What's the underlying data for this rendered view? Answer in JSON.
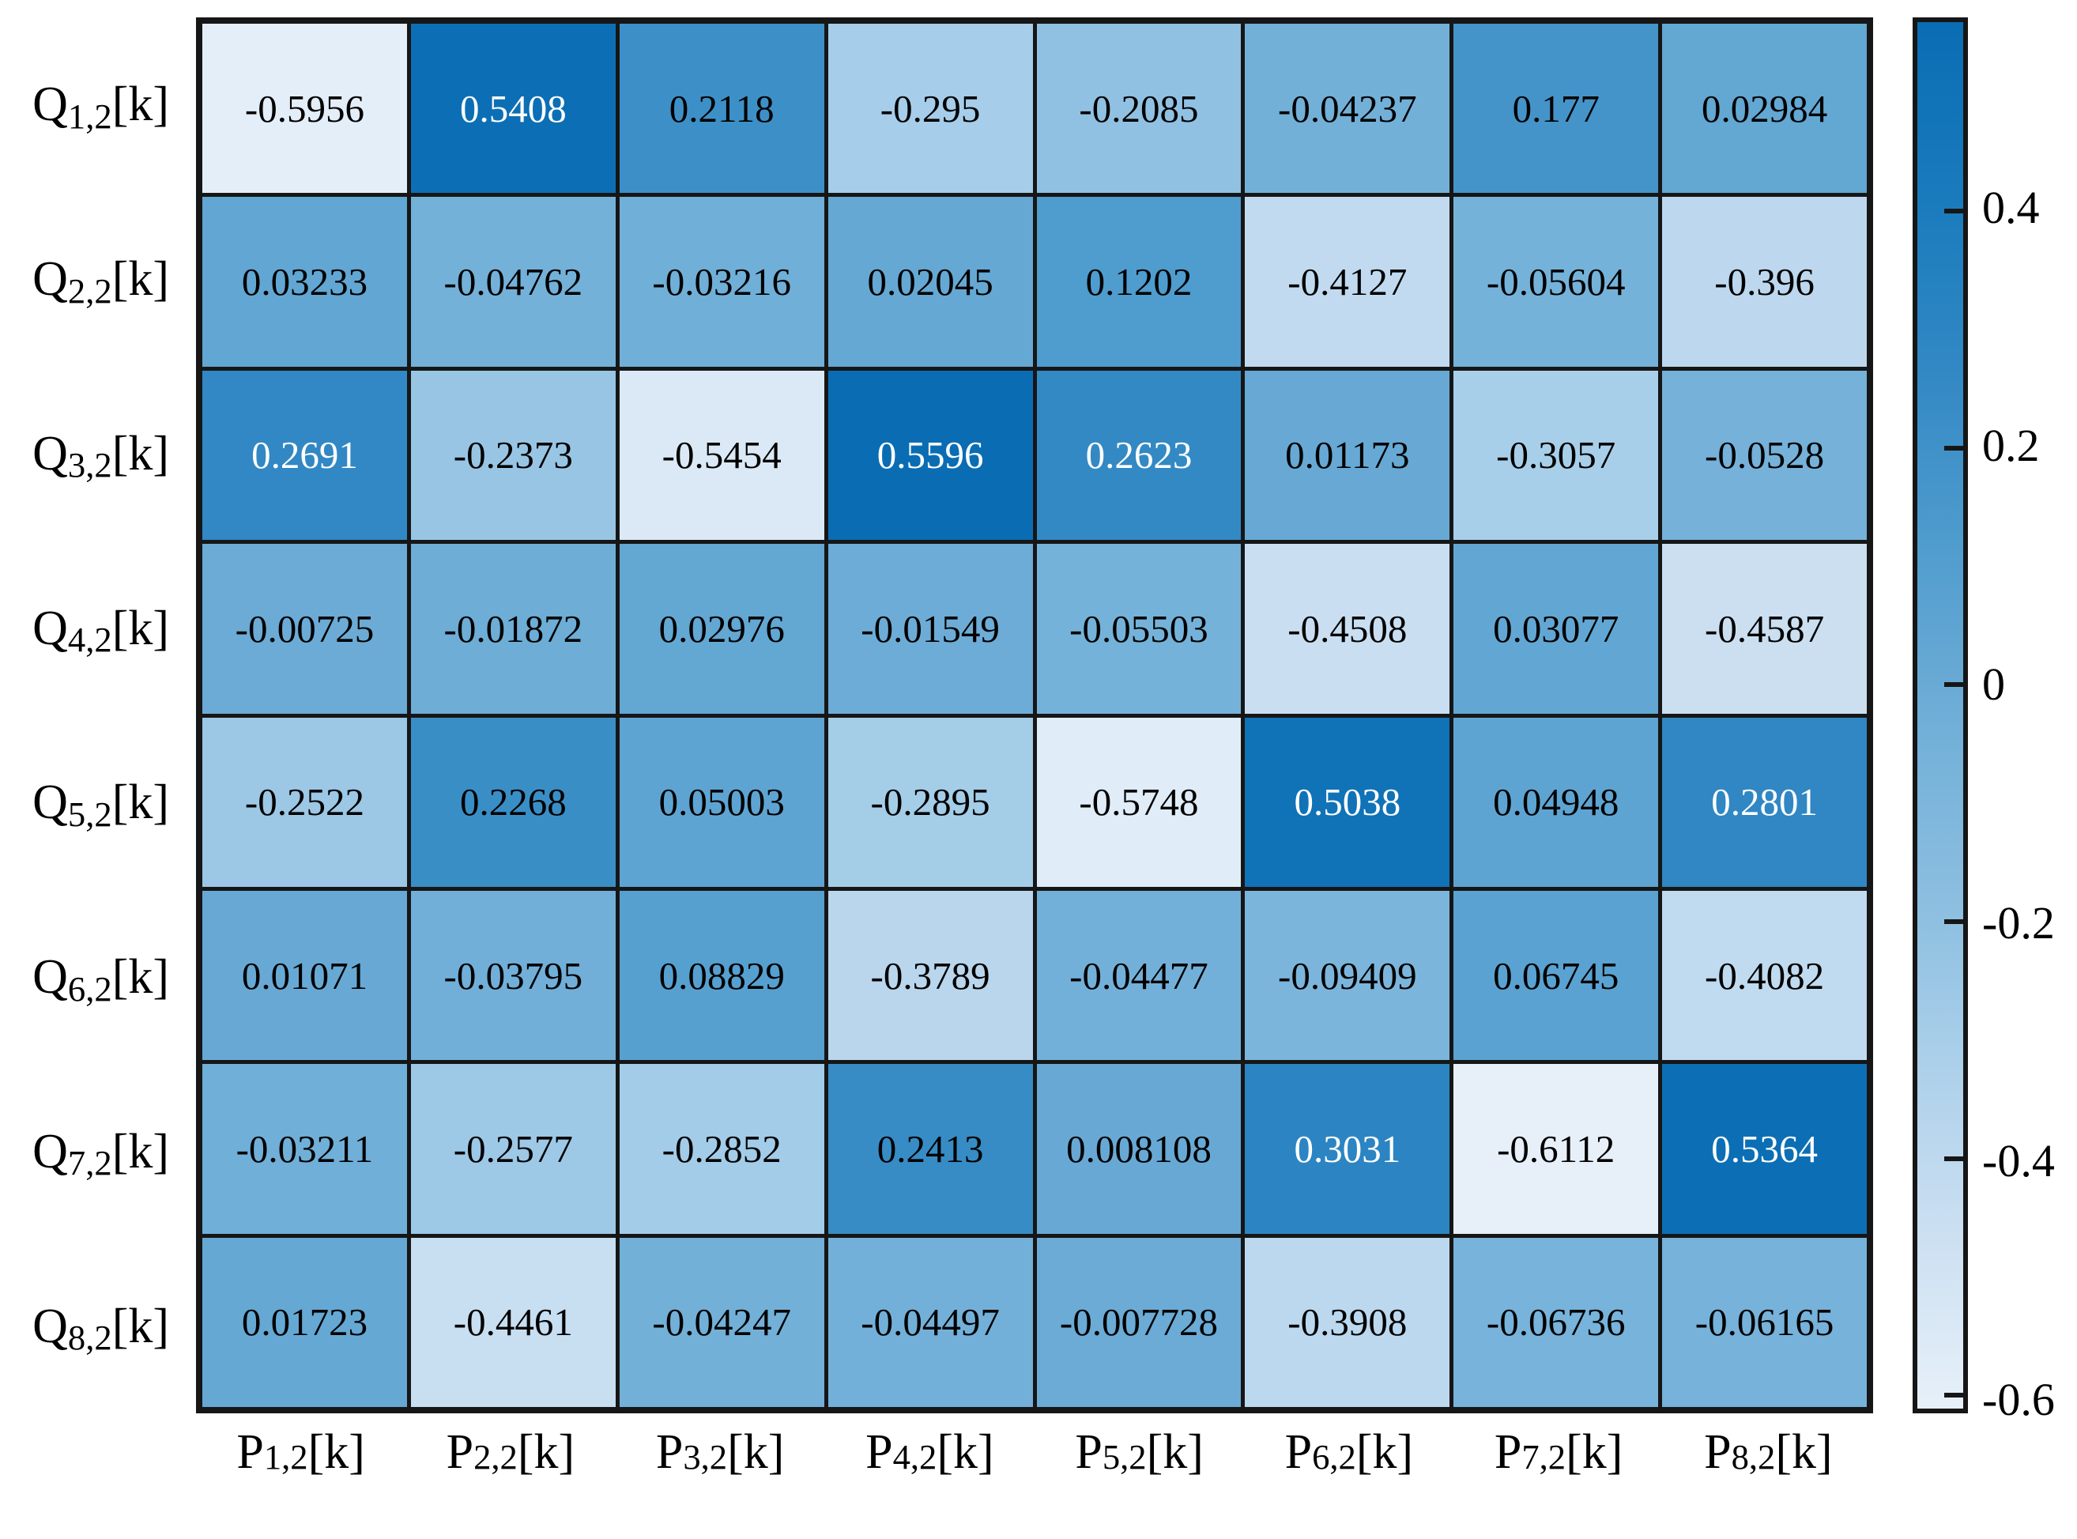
{
  "figure": {
    "background": "#ffffff",
    "grid_line_color": "#161616"
  },
  "chart_data": {
    "type": "heatmap",
    "title": "",
    "xlabel": "",
    "ylabel": "",
    "row_labels": [
      {
        "base": "Q",
        "sub": "1,2",
        "suffix": "[k]"
      },
      {
        "base": "Q",
        "sub": "2,2",
        "suffix": "[k]"
      },
      {
        "base": "Q",
        "sub": "3,2",
        "suffix": "[k]"
      },
      {
        "base": "Q",
        "sub": "4,2",
        "suffix": "[k]"
      },
      {
        "base": "Q",
        "sub": "5,2",
        "suffix": "[k]"
      },
      {
        "base": "Q",
        "sub": "6,2",
        "suffix": "[k]"
      },
      {
        "base": "Q",
        "sub": "7,2",
        "suffix": "[k]"
      },
      {
        "base": "Q",
        "sub": "8,2",
        "suffix": "[k]"
      }
    ],
    "col_labels": [
      {
        "base": "P",
        "sub": "1,2",
        "suffix": "[k]"
      },
      {
        "base": "P",
        "sub": "2,2",
        "suffix": "[k]"
      },
      {
        "base": "P",
        "sub": "3,2",
        "suffix": "[k]"
      },
      {
        "base": "P",
        "sub": "4,2",
        "suffix": "[k]"
      },
      {
        "base": "P",
        "sub": "5,2",
        "suffix": "[k]"
      },
      {
        "base": "P",
        "sub": "6,2",
        "suffix": "[k]"
      },
      {
        "base": "P",
        "sub": "7,2",
        "suffix": "[k]"
      },
      {
        "base": "P",
        "sub": "8,2",
        "suffix": "[k]"
      }
    ],
    "values": [
      [
        "-0.5956",
        "0.5408",
        "0.2118",
        "-0.295",
        "-0.2085",
        "-0.04237",
        "0.177",
        "0.02984"
      ],
      [
        "0.03233",
        "-0.04762",
        "-0.03216",
        "0.02045",
        "0.1202",
        "-0.4127",
        "-0.05604",
        "-0.396"
      ],
      [
        "0.2691",
        "-0.2373",
        "-0.5454",
        "0.5596",
        "0.2623",
        "0.01173",
        "-0.3057",
        "-0.0528"
      ],
      [
        "-0.00725",
        "-0.01872",
        "0.02976",
        "-0.01549",
        "-0.05503",
        "-0.4508",
        "0.03077",
        "-0.4587"
      ],
      [
        "-0.2522",
        "0.2268",
        "0.05003",
        "-0.2895",
        "-0.5748",
        "0.5038",
        "0.04948",
        "0.2801"
      ],
      [
        "0.01071",
        "-0.03795",
        "0.08829",
        "-0.3789",
        "-0.04477",
        "-0.09409",
        "0.06745",
        "-0.4082"
      ],
      [
        "-0.03211",
        "-0.2577",
        "-0.2852",
        "0.2413",
        "0.008108",
        "0.3031",
        "-0.6112",
        "0.5364"
      ],
      [
        "0.01723",
        "-0.4461",
        "-0.04247",
        "-0.04497",
        "-0.007728",
        "-0.3908",
        "-0.06736",
        "-0.06165"
      ]
    ],
    "color_scale": {
      "vmin": -0.6112,
      "vmax": 0.5596,
      "white_text_threshold": 0.25,
      "text_color_dark": "#000000",
      "text_color_light": "#ffffff",
      "stops": [
        [
          -0.6112,
          "#e7f0f9"
        ],
        [
          -0.45,
          "#c9def1"
        ],
        [
          -0.3,
          "#a7cee9"
        ],
        [
          -0.2,
          "#8fc0e1"
        ],
        [
          -0.05,
          "#74b1d9"
        ],
        [
          0.01,
          "#67a9d4"
        ],
        [
          0.12,
          "#4f9cce"
        ],
        [
          0.26,
          "#3389c4"
        ],
        [
          0.4,
          "#1b7cbd"
        ],
        [
          0.5596,
          "#0a6db4"
        ]
      ]
    },
    "colorbar": {
      "position": "right",
      "ticks": [
        {
          "value": 0.4,
          "label": "0.4"
        },
        {
          "value": 0.2,
          "label": "0.2"
        },
        {
          "value": 0,
          "label": "0"
        },
        {
          "value": -0.2,
          "label": "-0.2"
        },
        {
          "value": -0.4,
          "label": "-0.4"
        },
        {
          "value": -0.6,
          "label": "-0.6"
        }
      ]
    },
    "grid": "on",
    "legend": "none"
  }
}
